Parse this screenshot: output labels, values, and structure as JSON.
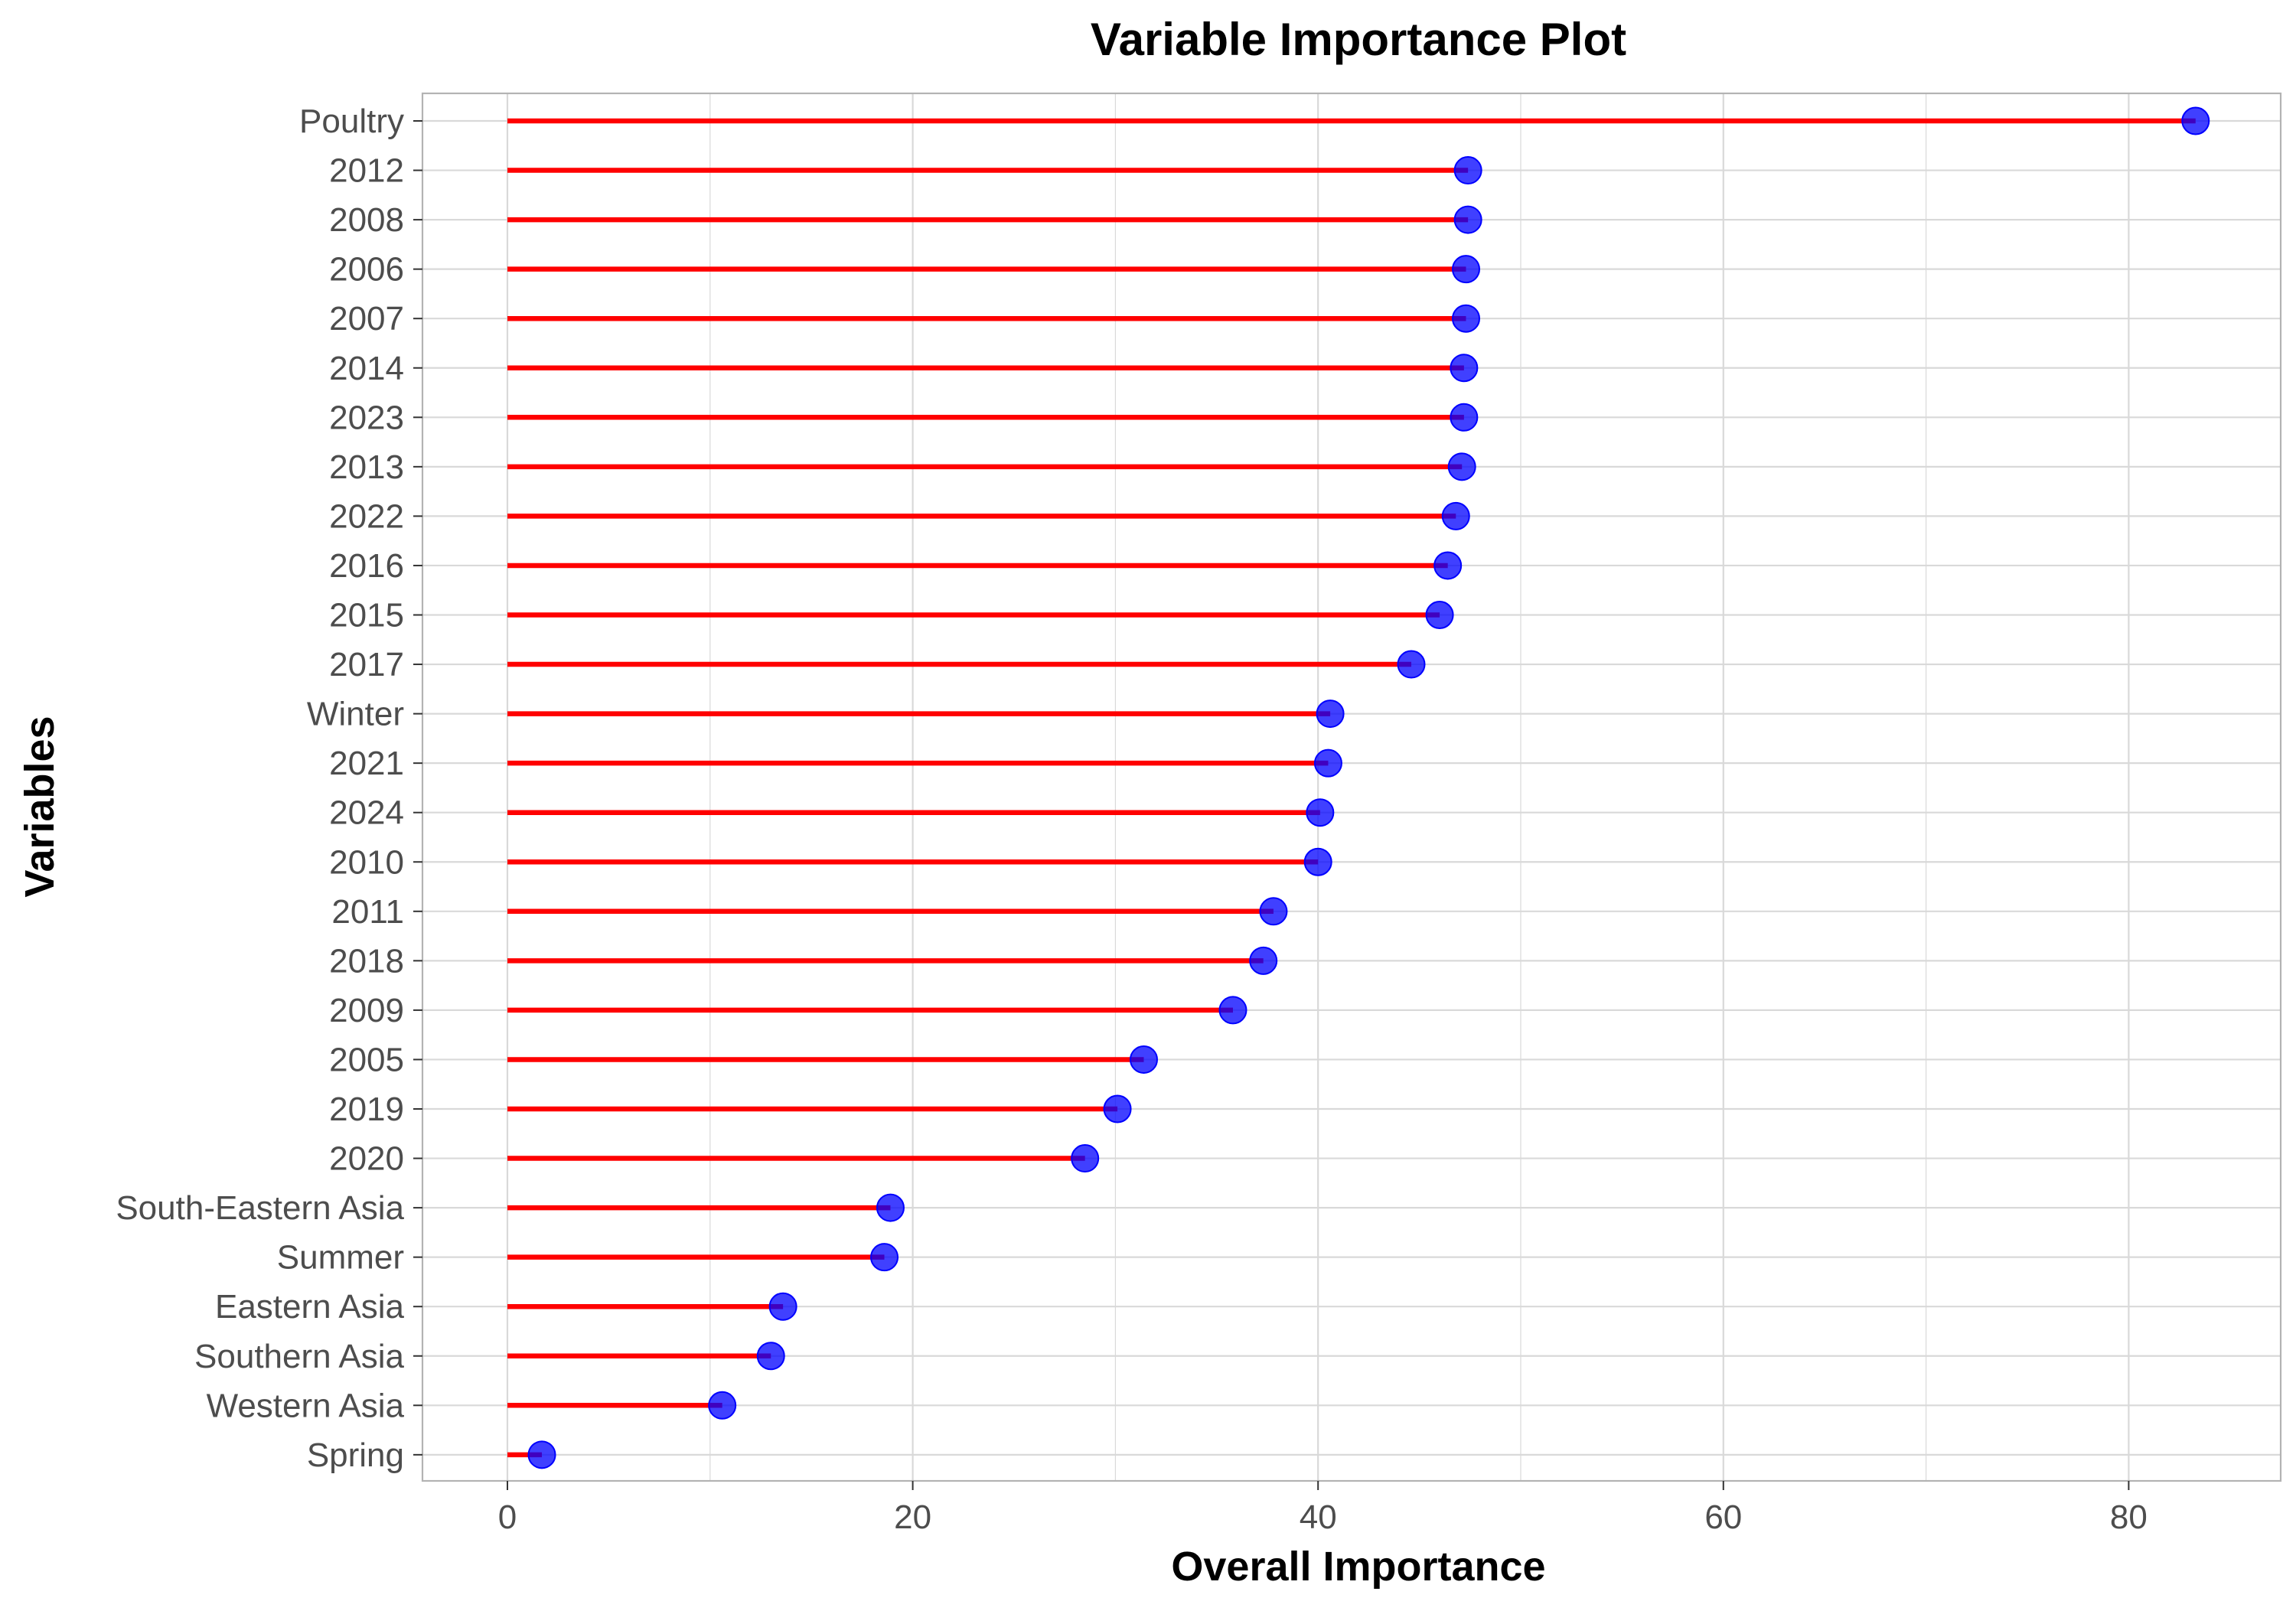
{
  "chart_data": {
    "type": "lollipop",
    "title": "Variable Importance Plot",
    "xlabel": "Overall Importance",
    "ylabel": "Variables",
    "xlim": [
      -4.2,
      87.5
    ],
    "xticks": [
      0,
      20,
      40,
      60,
      80
    ],
    "grid": true,
    "legend": "none",
    "colors": {
      "stem": "#ff0000",
      "point": "#0000ff",
      "point_alpha": 0.75,
      "grid": "#d9d9d9",
      "panel_border": "#b3b3b3"
    },
    "categories": [
      "Poultry",
      "2012",
      "2008",
      "2006",
      "2007",
      "2014",
      "2023",
      "2013",
      "2022",
      "2016",
      "2015",
      "2017",
      "Winter",
      "2021",
      "2024",
      "2010",
      "2011",
      "2018",
      "2009",
      "2005",
      "2019",
      "2020",
      "South-Eastern Asia",
      "Summer",
      "Eastern Asia",
      "Southern Asia",
      "Western Asia",
      "Spring"
    ],
    "values": [
      83.3,
      47.4,
      47.4,
      47.3,
      47.3,
      47.2,
      47.2,
      47.1,
      46.8,
      46.4,
      46.0,
      44.6,
      40.6,
      40.5,
      40.1,
      40.0,
      37.8,
      37.3,
      35.8,
      31.4,
      30.1,
      28.5,
      18.9,
      18.6,
      13.6,
      13.0,
      10.6,
      1.7
    ]
  }
}
